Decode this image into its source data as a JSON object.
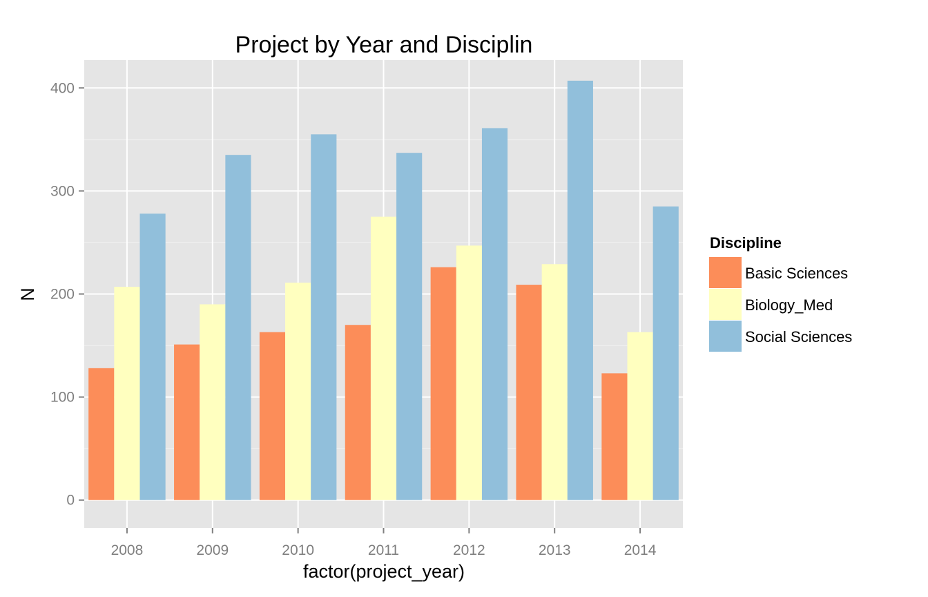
{
  "chart_data": {
    "type": "bar",
    "title": "Project by Year and Disciplin",
    "xlabel": "factor(project_year)",
    "ylabel": "N",
    "categories": [
      "2008",
      "2009",
      "2010",
      "2011",
      "2012",
      "2013",
      "2014"
    ],
    "y_ticks": [
      0,
      100,
      200,
      300,
      400
    ],
    "y_tick_labels": [
      "0",
      "100",
      "200",
      "300",
      "400"
    ],
    "ylim": [
      -27,
      427
    ],
    "grid": true,
    "legend": {
      "title": "Discipline",
      "placement": "right"
    },
    "series": [
      {
        "name": "Basic Sciences",
        "color": "#FC8D59",
        "values": [
          128,
          151,
          163,
          170,
          226,
          209,
          123
        ]
      },
      {
        "name": "Biology_Med",
        "color": "#FFFFBF",
        "values": [
          207,
          190,
          211,
          275,
          247,
          229,
          163
        ]
      },
      {
        "name": "Social Sciences",
        "color": "#91BFDB",
        "values": [
          278,
          335,
          355,
          337,
          361,
          407,
          285
        ]
      }
    ]
  }
}
